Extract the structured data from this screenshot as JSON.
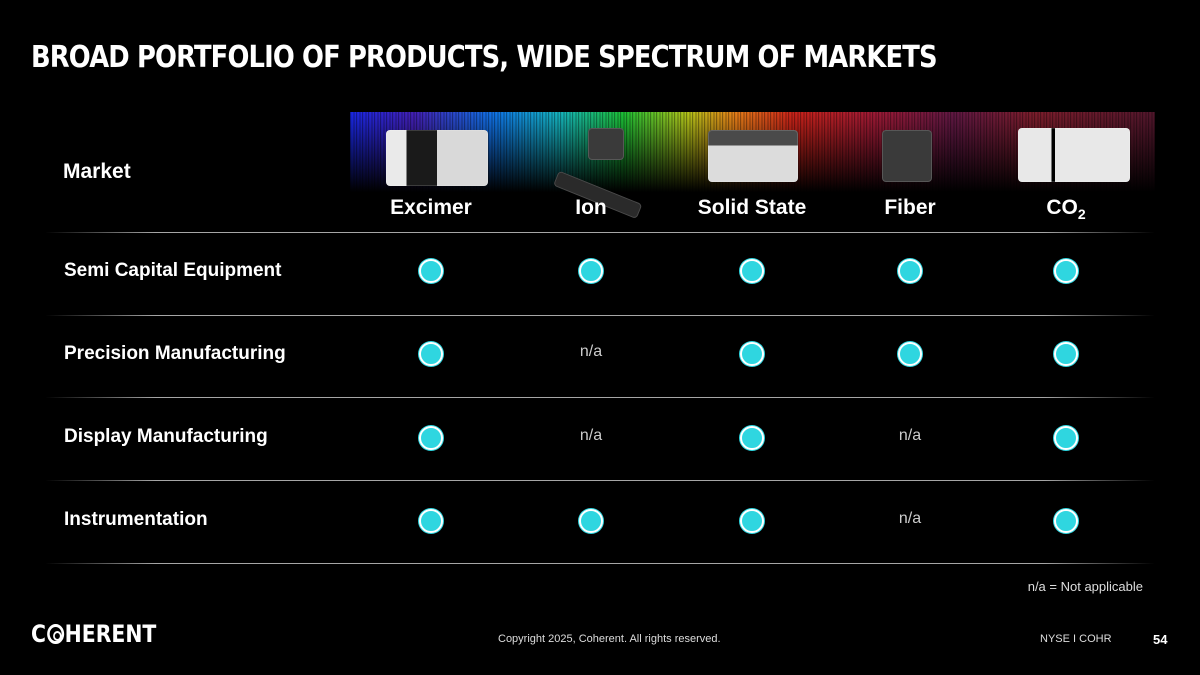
{
  "title": "BROAD PORTFOLIO OF PRODUCTS, WIDE SPECTRUM OF MARKETS",
  "table": {
    "market_header": "Market",
    "columns": [
      {
        "label": "Excimer"
      },
      {
        "label": "Ion"
      },
      {
        "label": "Solid State"
      },
      {
        "label": "Fiber"
      },
      {
        "label_main": "CO",
        "label_sub": "2"
      }
    ],
    "rows": [
      {
        "label": "Semi Capital Equipment",
        "cells": [
          "●",
          "●",
          "●",
          "●",
          "●"
        ]
      },
      {
        "label": "Precision Manufacturing",
        "cells": [
          "●",
          "n/a",
          "●",
          "●",
          "●"
        ]
      },
      {
        "label": "Display Manufacturing",
        "cells": [
          "●",
          "n/a",
          "●",
          "n/a",
          "●"
        ]
      },
      {
        "label": "Instrumentation",
        "cells": [
          "●",
          "●",
          "●",
          "n/a",
          "●"
        ]
      }
    ]
  },
  "footnote": "n/a = Not applicable",
  "footer": {
    "logo": "COHERENT",
    "logo_pre": "C",
    "logo_post": "HERENT",
    "copyright": "Copyright 2025, Coherent. All rights reserved.",
    "ticker": "NYSE I COHR",
    "page_number": "54"
  },
  "colors": {
    "background": "#000000",
    "marker": "#2fd6e0"
  }
}
